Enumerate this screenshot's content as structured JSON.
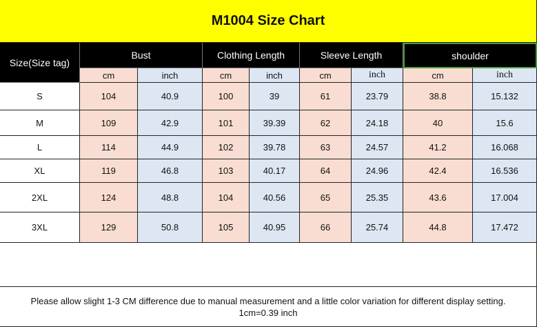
{
  "title": "M1004 Size Chart",
  "table": {
    "header": [
      "Size(Size tag)",
      "Bust",
      "Clothing Length",
      "Sleeve Length",
      "shoulder"
    ],
    "units": [
      "cm",
      "inch",
      "cm",
      "inch",
      "cm",
      "inch",
      "cm",
      "inch"
    ],
    "rows": [
      [
        "S",
        "104",
        "40.9",
        "100",
        "39",
        "61",
        "23.79",
        "38.8",
        "15.132"
      ],
      [
        "M",
        "109",
        "42.9",
        "101",
        "39.39",
        "62",
        "24.18",
        "40",
        "15.6"
      ],
      [
        "L",
        "114",
        "44.9",
        "102",
        "39.78",
        "63",
        "24.57",
        "41.2",
        "16.068"
      ],
      [
        "XL",
        "119",
        "46.8",
        "103",
        "40.17",
        "64",
        "24.96",
        "42.4",
        "16.536"
      ],
      [
        "2XL",
        "124",
        "48.8",
        "104",
        "40.56",
        "65",
        "25.35",
        "43.6",
        "17.004"
      ],
      [
        "3XL",
        "129",
        "50.8",
        "105",
        "40.95",
        "66",
        "25.74",
        "44.8",
        "17.472"
      ]
    ]
  },
  "footer": [
    "Please allow slight 1-3 CM difference due to manual measurement and a little color variation for different display setting.",
    "1cm=0.39 inch"
  ]
}
